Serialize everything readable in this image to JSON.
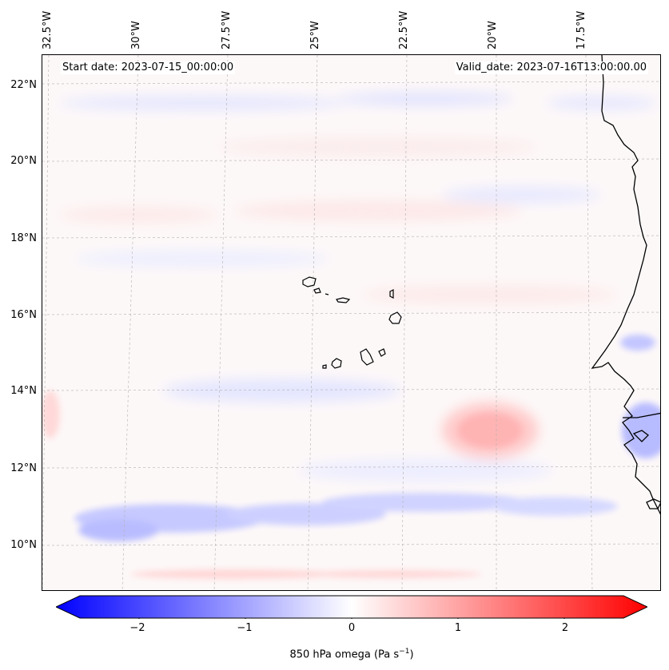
{
  "map": {
    "start_date": "Start date: 2023-07-15_00:00:00",
    "valid_date": "Valid_date: 2023-07-16T13:00:00.00",
    "lon_labels": [
      "32.5°W",
      "30°W",
      "27.5°W",
      "25°W",
      "22.5°W",
      "20°W",
      "17.5°W"
    ],
    "lat_labels": [
      "22°N",
      "20°N",
      "18°N",
      "16°N",
      "14°N",
      "12°N",
      "10°N"
    ]
  },
  "colorbar": {
    "ticks": [
      "−2",
      "−1",
      "0",
      "1",
      "2"
    ],
    "label_main": "850 hPa omega (Pa s",
    "label_sup": "−1",
    "label_end": ")",
    "min": -2.6,
    "max": 2.6,
    "color_neg": "#0000ff",
    "color_mid": "#ffffff",
    "color_pos": "#ff0000"
  },
  "colors": {
    "land_outline": "#000000",
    "gridline": "#b0b0b0"
  }
}
